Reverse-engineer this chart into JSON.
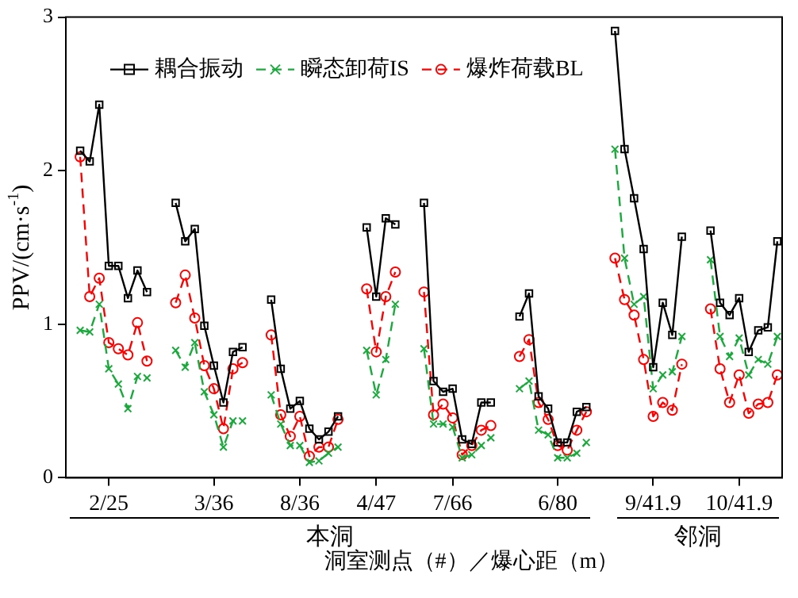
{
  "chart_data": {
    "type": "line",
    "xlabel": "洞室测点（#）／爆心距（m）",
    "ylabel": "PPV/(cm·s$^{-1}$)",
    "annotations": [
      "本洞",
      "邻洞"
    ],
    "categories": [
      null,
      null,
      null,
      null,
      "2/25",
      null,
      null,
      null,
      null,
      null,
      null,
      null,
      null,
      null,
      null,
      "3/36",
      null,
      null,
      null,
      null,
      null,
      null,
      null,
      null,
      "8/36",
      null,
      null,
      null,
      null,
      null,
      null,
      null,
      "4/47",
      null,
      null,
      null,
      null,
      null,
      null,
      null,
      "7/66",
      null,
      null,
      null,
      null,
      null,
      null,
      null,
      null,
      null,
      null,
      "6/80",
      null,
      null,
      null,
      null,
      null,
      null,
      null,
      null,
      null,
      "9/41.9",
      null,
      null,
      null,
      null,
      null,
      null,
      null,
      null,
      "10/41.9",
      null,
      null,
      null,
      null
    ],
    "series": [
      {
        "name": "耦合振动",
        "color": "#000000",
        "marker": "square",
        "line_style": "solid",
        "values": [
          null,
          2.13,
          2.06,
          2.43,
          1.38,
          1.38,
          1.17,
          1.35,
          1.21,
          null,
          null,
          1.79,
          1.54,
          1.62,
          0.99,
          0.73,
          0.49,
          0.82,
          0.85,
          null,
          null,
          1.16,
          0.71,
          0.45,
          0.5,
          0.32,
          0.25,
          0.3,
          0.4,
          null,
          null,
          1.63,
          1.18,
          1.69,
          1.65,
          null,
          null,
          1.79,
          0.63,
          0.56,
          0.58,
          0.25,
          0.22,
          0.49,
          0.49,
          null,
          null,
          1.05,
          1.2,
          0.53,
          0.45,
          0.23,
          0.23,
          0.43,
          0.46,
          null,
          null,
          2.91,
          2.14,
          1.82,
          1.49,
          0.72,
          1.14,
          0.93,
          1.57,
          null,
          null,
          1.61,
          1.14,
          1.06,
          1.17,
          0.82,
          0.96,
          0.98,
          1.54
        ]
      },
      {
        "name": "瞬态卸荷IS",
        "color": "#1aaa3c",
        "marker": "cross",
        "line_style": "dashed",
        "values": [
          null,
          0.96,
          0.95,
          1.13,
          0.71,
          0.61,
          0.45,
          0.66,
          0.65,
          null,
          null,
          0.83,
          0.72,
          0.88,
          0.56,
          0.41,
          0.2,
          0.37,
          0.37,
          null,
          null,
          0.54,
          0.35,
          0.21,
          0.21,
          0.1,
          0.11,
          0.16,
          0.2,
          null,
          null,
          0.83,
          0.54,
          0.77,
          1.13,
          null,
          null,
          0.84,
          0.35,
          0.35,
          0.33,
          0.13,
          0.15,
          0.21,
          0.26,
          null,
          null,
          0.58,
          0.63,
          0.31,
          0.28,
          0.13,
          0.13,
          0.16,
          0.23,
          null,
          null,
          2.14,
          1.43,
          1.13,
          1.18,
          0.58,
          0.67,
          0.69,
          0.92,
          null,
          null,
          1.42,
          0.92,
          0.79,
          0.91,
          0.67,
          0.77,
          0.74,
          0.92
        ]
      },
      {
        "name": "爆炸荷载BL",
        "color": "#ff0000",
        "marker": "circle",
        "line_style": "dashed",
        "values": [
          null,
          2.09,
          1.18,
          1.3,
          0.88,
          0.84,
          0.8,
          1.01,
          0.76,
          null,
          null,
          1.14,
          1.32,
          1.04,
          0.73,
          0.58,
          0.32,
          0.71,
          0.75,
          null,
          null,
          0.93,
          0.41,
          0.27,
          0.4,
          0.14,
          0.2,
          0.2,
          0.38,
          null,
          null,
          1.23,
          0.82,
          1.18,
          1.34,
          null,
          null,
          1.21,
          0.41,
          0.48,
          0.39,
          0.15,
          0.21,
          0.31,
          0.34,
          null,
          null,
          0.79,
          0.9,
          0.49,
          0.38,
          0.21,
          0.18,
          0.31,
          0.43,
          null,
          null,
          1.43,
          1.16,
          1.06,
          0.77,
          0.4,
          0.49,
          0.44,
          0.74,
          null,
          null,
          1.1,
          0.71,
          0.49,
          0.67,
          0.42,
          0.48,
          0.49,
          0.67
        ]
      }
    ],
    "ylim": [
      0,
      3
    ],
    "yticks": [
      0,
      1,
      2,
      3
    ],
    "grid": false,
    "legend": "top"
  }
}
